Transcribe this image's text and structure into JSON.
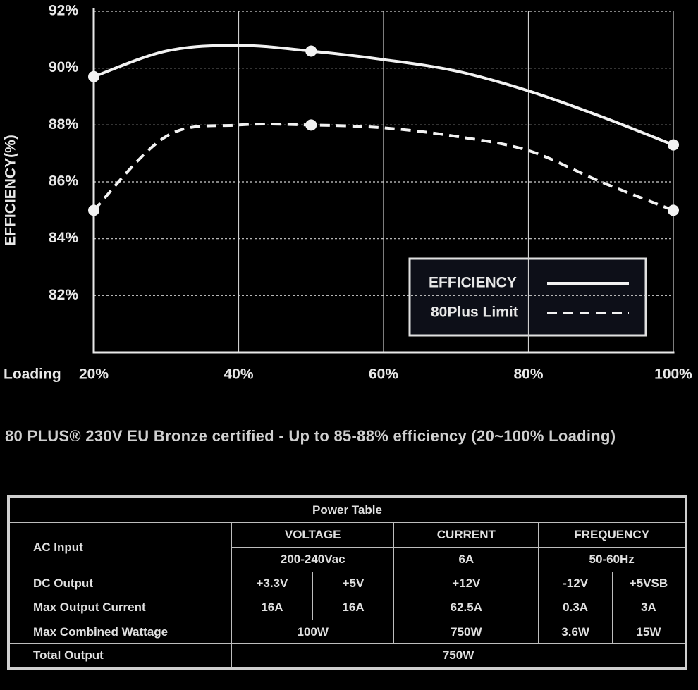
{
  "chart_data": {
    "type": "line",
    "y_label": "EFFICIENCY(%)",
    "x_label": "Loading",
    "x": [
      20,
      30,
      40,
      50,
      60,
      70,
      80,
      90,
      100
    ],
    "series": [
      {
        "name": "EFFICIENCY",
        "color": "#f2f2f2",
        "dash": false,
        "markers": [
          0,
          3,
          8
        ],
        "values": [
          89.7,
          90.6,
          90.8,
          90.6,
          90.3,
          89.9,
          89.2,
          88.3,
          87.3
        ]
      },
      {
        "name": "80Plus Limit",
        "color": "#f2f2f2",
        "dash": true,
        "markers": [
          0,
          3,
          8
        ],
        "values": [
          85,
          87.6,
          88,
          88,
          87.9,
          87.6,
          87.1,
          86,
          85
        ]
      }
    ],
    "xlim": [
      20,
      100
    ],
    "xticks": [
      {
        "value": 20,
        "label": "20%"
      },
      {
        "value": 40,
        "label": "40%"
      },
      {
        "value": 60,
        "label": "60%"
      },
      {
        "value": 80,
        "label": "80%"
      },
      {
        "value": 100,
        "label": "100%"
      }
    ],
    "ylim": [
      80,
      92
    ],
    "yticks": [
      {
        "value": 82,
        "label": "82%"
      },
      {
        "value": 84,
        "label": "84%"
      },
      {
        "value": 86,
        "label": "86%"
      },
      {
        "value": 88,
        "label": "88%"
      },
      {
        "value": 90,
        "label": "90%"
      },
      {
        "value": 92,
        "label": "92%"
      }
    ],
    "grid": true,
    "legend": "lower right"
  },
  "caption": "80 PLUS® 230V EU Bronze certified - Up to 85-88% efficiency (20~100% Loading)",
  "table": {
    "title": "Power Table",
    "rows": [
      [
        "AC Input",
        "VOLTAGE",
        "CURRENT",
        "FREQUENCY"
      ],
      [
        "200-240Vac",
        "6A",
        "50-60Hz"
      ],
      [
        "DC Output",
        "+3.3V",
        "+5V",
        "+12V",
        "-12V",
        "+5VSB"
      ],
      [
        "Max Output Current",
        "16A",
        "16A",
        "62.5A",
        "0.3A",
        "3A"
      ],
      [
        "Max Combined Wattage",
        "100W",
        "750W",
        "3.6W",
        "15W"
      ],
      [
        "Total Output",
        "750W"
      ]
    ]
  }
}
